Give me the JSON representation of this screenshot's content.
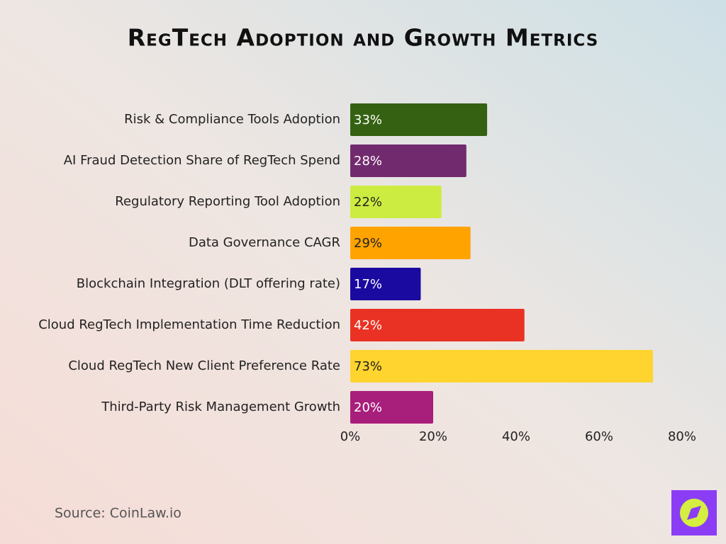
{
  "chart_data": {
    "type": "bar",
    "orientation": "horizontal",
    "title": "RegTech Adoption and Growth Metrics",
    "categories": [
      "Risk & Compliance Tools Adoption",
      "AI Fraud Detection Share of RegTech Spend",
      "Regulatory Reporting Tool Adoption",
      "Data Governance CAGR",
      "Blockchain Integration (DLT offering rate)",
      "Cloud RegTech Implementation Time Reduction",
      "Cloud RegTech New Client Preference Rate",
      "Third-Party Risk Management Growth"
    ],
    "values": [
      33,
      28,
      22,
      29,
      17,
      42,
      73,
      20
    ],
    "value_labels": [
      "33%",
      "28%",
      "22%",
      "29%",
      "17%",
      "42%",
      "73%",
      "20%"
    ],
    "colors": [
      "#356212",
      "#722a6e",
      "#cdec41",
      "#ffa300",
      "#1a0aa0",
      "#e93223",
      "#ffd42e",
      "#a81e7b"
    ],
    "xlim": [
      0,
      80
    ],
    "xticks": [
      {
        "value": 0,
        "label": "0%"
      },
      {
        "value": 20,
        "label": "20%"
      },
      {
        "value": 40,
        "label": "40%"
      },
      {
        "value": 60,
        "label": "60%"
      },
      {
        "value": 80,
        "label": "80%"
      }
    ],
    "grid": false,
    "source": "Source: CoinLaw.io"
  }
}
